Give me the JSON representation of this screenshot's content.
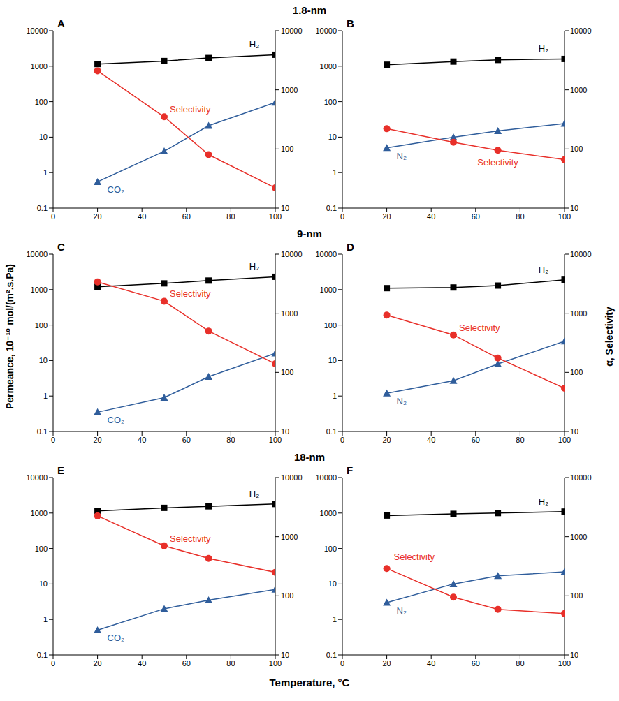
{
  "x_label": "Temperature, °C",
  "y_label": "Permeance, 10⁻¹⁰ mol/(m².s.Pa)",
  "y2_label": "α, Selectivity",
  "row_titles": [
    "1.8-nm",
    "9-nm",
    "18-nm"
  ],
  "chart_data": [
    {
      "type": "line",
      "title": "A",
      "x": [
        20,
        50,
        70,
        100
      ],
      "xlim": [
        0,
        100
      ],
      "xticks": [
        0,
        20,
        40,
        60,
        80,
        100
      ],
      "ylim": [
        0.1,
        10000
      ],
      "yticks": [
        0.1,
        1,
        10,
        100,
        1000,
        10000
      ],
      "y2lim": [
        10,
        10000
      ],
      "y2ticks": [
        10,
        100,
        1000,
        10000
      ],
      "log": "y",
      "series": [
        {
          "name": "H₂",
          "color": "#000000",
          "marker": "square",
          "values": [
            1150,
            1400,
            1700,
            2100
          ]
        },
        {
          "name": "CO₂",
          "color": "#2f5d9b",
          "marker": "triangle",
          "values": [
            0.55,
            4,
            21,
            95
          ]
        },
        {
          "name": "Selectivity",
          "color": "#e8302a",
          "marker": "circle",
          "axis": "y2",
          "values": [
            2100,
            350,
            80,
            22
          ]
        }
      ]
    },
    {
      "type": "line",
      "title": "B",
      "x": [
        20,
        50,
        70,
        100
      ],
      "xlim": [
        0,
        100
      ],
      "xticks": [
        0,
        20,
        40,
        60,
        80,
        100
      ],
      "ylim": [
        0.1,
        10000
      ],
      "yticks": [
        0.1,
        1,
        10,
        100,
        1000,
        10000
      ],
      "y2lim": [
        10,
        10000
      ],
      "y2ticks": [
        10,
        100,
        1000,
        10000
      ],
      "log": "y",
      "series": [
        {
          "name": "H₂",
          "color": "#000000",
          "marker": "square",
          "values": [
            1100,
            1350,
            1500,
            1600
          ]
        },
        {
          "name": "N₂",
          "color": "#2f5d9b",
          "marker": "triangle",
          "values": [
            5,
            10,
            15,
            24
          ]
        },
        {
          "name": "Selectivity",
          "color": "#e8302a",
          "marker": "circle",
          "axis": "y2",
          "values": [
            220,
            130,
            95,
            66
          ]
        }
      ]
    },
    {
      "type": "line",
      "title": "C",
      "x": [
        20,
        50,
        70,
        100
      ],
      "xlim": [
        0,
        100
      ],
      "xticks": [
        0,
        20,
        40,
        60,
        80,
        100
      ],
      "ylim": [
        0.1,
        10000
      ],
      "yticks": [
        0.1,
        1,
        10,
        100,
        1000,
        10000
      ],
      "y2lim": [
        10,
        10000
      ],
      "y2ticks": [
        10,
        100,
        1000,
        10000
      ],
      "log": "y",
      "series": [
        {
          "name": "H₂",
          "color": "#000000",
          "marker": "square",
          "values": [
            1200,
            1500,
            1800,
            2300
          ]
        },
        {
          "name": "CO₂",
          "color": "#2f5d9b",
          "marker": "triangle",
          "values": [
            0.35,
            0.9,
            3.5,
            16
          ]
        },
        {
          "name": "Selectivity",
          "color": "#e8302a",
          "marker": "circle",
          "axis": "y2",
          "values": [
            3400,
            1600,
            500,
            140
          ]
        }
      ]
    },
    {
      "type": "line",
      "title": "D",
      "x": [
        20,
        50,
        70,
        100
      ],
      "xlim": [
        0,
        100
      ],
      "xticks": [
        0,
        20,
        40,
        60,
        80,
        100
      ],
      "ylim": [
        0.1,
        10000
      ],
      "yticks": [
        0.1,
        1,
        10,
        100,
        1000,
        10000
      ],
      "y2lim": [
        10,
        10000
      ],
      "y2ticks": [
        10,
        100,
        1000,
        10000
      ],
      "log": "y",
      "series": [
        {
          "name": "H₂",
          "color": "#000000",
          "marker": "square",
          "values": [
            1100,
            1150,
            1300,
            1900
          ]
        },
        {
          "name": "N₂",
          "color": "#2f5d9b",
          "marker": "triangle",
          "values": [
            1.2,
            2.7,
            8,
            35
          ]
        },
        {
          "name": "Selectivity",
          "color": "#e8302a",
          "marker": "circle",
          "axis": "y2",
          "values": [
            930,
            430,
            175,
            54
          ]
        }
      ]
    },
    {
      "type": "line",
      "title": "E",
      "x": [
        20,
        50,
        70,
        100
      ],
      "xlim": [
        0,
        100
      ],
      "xticks": [
        0,
        20,
        40,
        60,
        80,
        100
      ],
      "ylim": [
        0.1,
        10000
      ],
      "yticks": [
        0.1,
        1,
        10,
        100,
        1000,
        10000
      ],
      "y2lim": [
        10,
        10000
      ],
      "y2ticks": [
        10,
        100,
        1000,
        10000
      ],
      "log": "y",
      "series": [
        {
          "name": "H₂",
          "color": "#000000",
          "marker": "square",
          "values": [
            1150,
            1400,
            1550,
            1800
          ]
        },
        {
          "name": "CO₂",
          "color": "#2f5d9b",
          "marker": "triangle",
          "values": [
            0.5,
            2,
            3.5,
            7
          ]
        },
        {
          "name": "Selectivity",
          "color": "#e8302a",
          "marker": "circle",
          "axis": "y2",
          "values": [
            2250,
            700,
            430,
            250
          ]
        }
      ]
    },
    {
      "type": "line",
      "title": "F",
      "x": [
        20,
        50,
        70,
        100
      ],
      "xlim": [
        0,
        100
      ],
      "xticks": [
        0,
        20,
        40,
        60,
        80,
        100
      ],
      "ylim": [
        0.1,
        10000
      ],
      "yticks": [
        0.1,
        1,
        10,
        100,
        1000,
        10000
      ],
      "y2lim": [
        10,
        10000
      ],
      "y2ticks": [
        10,
        100,
        1000,
        10000
      ],
      "log": "y",
      "series": [
        {
          "name": "H₂",
          "color": "#000000",
          "marker": "square",
          "values": [
            850,
            950,
            1000,
            1100
          ]
        },
        {
          "name": "N₂",
          "color": "#2f5d9b",
          "marker": "triangle",
          "values": [
            3,
            10,
            17,
            22
          ]
        },
        {
          "name": "Selectivity",
          "color": "#e8302a",
          "marker": "circle",
          "axis": "y2",
          "values": [
            290,
            95,
            59,
            50
          ]
        }
      ]
    }
  ]
}
